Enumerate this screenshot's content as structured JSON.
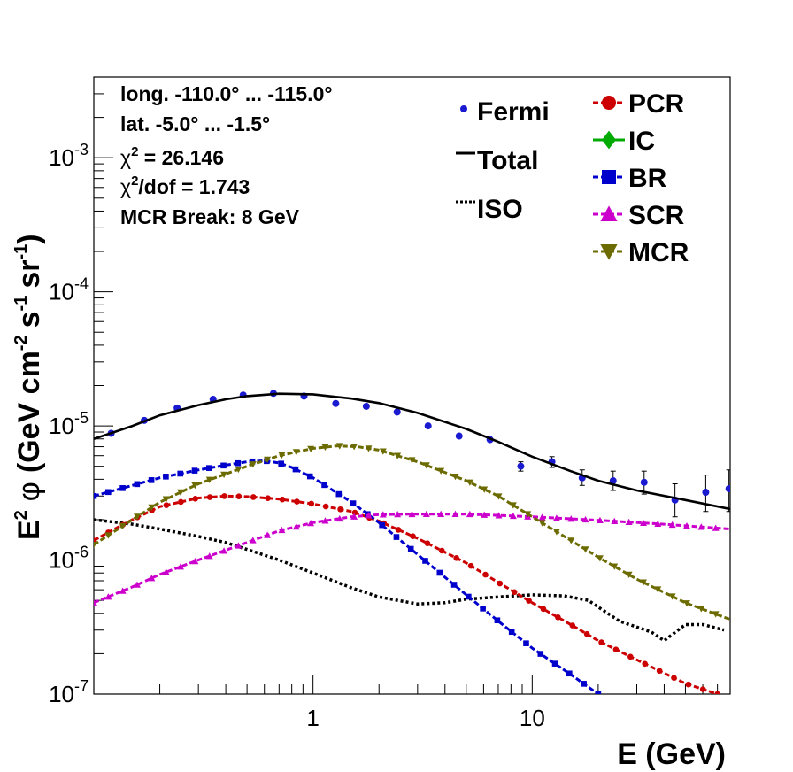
{
  "chart_data": {
    "type": "line",
    "title": "",
    "xlabel": "E (GeV)",
    "ylabel": {
      "main": "E",
      "sup1": "2",
      "phi": "φ",
      "unit_open": "(GeV cm",
      "sup2": "-2",
      "mid": "s",
      "sup3": "-1",
      "sr": "sr",
      "sup4": "-1",
      "close": ")"
    },
    "xscale": "log",
    "yscale": "log",
    "xlim": [
      0.1,
      80
    ],
    "ylim": [
      1e-07,
      0.004
    ],
    "x_ticks": [
      {
        "value": 1,
        "label": "1"
      },
      {
        "value": 10,
        "label": "10"
      }
    ],
    "y_ticks": [
      {
        "value": 1e-07,
        "base": "10",
        "exp": "-7"
      },
      {
        "value": 1e-06,
        "base": "10",
        "exp": "-6"
      },
      {
        "value": 1e-05,
        "base": "10",
        "exp": "-5"
      },
      {
        "value": 0.0001,
        "base": "10",
        "exp": "-4"
      },
      {
        "value": 0.001,
        "base": "10",
        "exp": "-3"
      }
    ],
    "grid": false,
    "annotations": [
      {
        "text": "long. -110.0° ... -115.0°"
      },
      {
        "text": "lat. -5.0° ... -1.5°"
      },
      {
        "pre": "χ",
        "sup": "2",
        "post": " = 26.146"
      },
      {
        "pre": "χ",
        "sup": "2",
        "post": "/dof = 1.743"
      },
      {
        "text": "MCR Break:  8 GeV"
      }
    ],
    "legend_placement": "top-right",
    "series": [
      {
        "name": "Fermi",
        "kind": "points",
        "color": "#1a1ad0",
        "marker": "circle",
        "x": [
          0.12,
          0.17,
          0.24,
          0.35,
          0.48,
          0.66,
          0.91,
          1.27,
          1.75,
          2.42,
          3.35,
          4.64,
          6.42,
          8.87,
          12.3,
          16.9,
          23.4,
          32.4,
          44.8,
          61.9,
          79
        ],
        "y": [
          8.8e-06,
          1.1e-05,
          1.36e-05,
          1.58e-05,
          1.7e-05,
          1.75e-05,
          1.67e-05,
          1.47e-05,
          1.4e-05,
          1.27e-05,
          1e-05,
          8.4e-06,
          7.9e-06,
          5e-06,
          5.4e-06,
          4.1e-06,
          3.9e-06,
          3.8e-06,
          2.8e-06,
          3.2e-06,
          3.4e-06
        ],
        "err_lo": [
          0,
          0,
          0,
          0,
          0,
          0,
          0,
          0,
          0,
          0,
          0,
          0,
          0,
          4e-07,
          5e-07,
          5e-07,
          6e-07,
          7e-07,
          7e-07,
          9e-07,
          1.1e-06
        ],
        "err_hi": [
          0,
          0,
          0,
          0,
          0,
          0,
          0,
          0,
          0,
          0,
          0,
          0,
          0,
          4e-07,
          5e-07,
          6e-07,
          7e-07,
          8e-07,
          9e-07,
          1.1e-06,
          1.3e-06
        ]
      },
      {
        "name": "Total",
        "kind": "line",
        "color": "#000000",
        "dash": "solid",
        "x": [
          0.1,
          0.15,
          0.2,
          0.3,
          0.4,
          0.5,
          0.7,
          1.0,
          1.5,
          2.0,
          3.0,
          5.0,
          7.0,
          10,
          15,
          20,
          30,
          50,
          80
        ],
        "y": [
          8e-06,
          1e-05,
          1.2e-05,
          1.43e-05,
          1.58e-05,
          1.67e-05,
          1.74e-05,
          1.72e-05,
          1.6e-05,
          1.48e-05,
          1.25e-05,
          9.5e-06,
          7.6e-06,
          5.9e-06,
          4.6e-06,
          3.9e-06,
          3.3e-06,
          2.8e-06,
          2.4e-06
        ]
      },
      {
        "name": "ISO",
        "kind": "line",
        "color": "#000000",
        "dash": "dotted",
        "x": [
          0.1,
          0.15,
          0.2,
          0.3,
          0.4,
          0.5,
          0.7,
          1.0,
          1.5,
          2.0,
          3.0,
          4.0,
          5.0,
          7.0,
          10,
          14,
          18,
          25,
          35,
          40,
          50,
          60,
          75
        ],
        "y": [
          2e-06,
          1.85e-06,
          1.7e-06,
          1.5e-06,
          1.35e-06,
          1.2e-06,
          1e-06,
          8e-07,
          6.2e-07,
          5.3e-07,
          4.7e-07,
          4.8e-07,
          5.1e-07,
          5.3e-07,
          5.5e-07,
          5.4e-07,
          5e-07,
          3.5e-07,
          2.9e-07,
          2.5e-07,
          3.3e-07,
          3.3e-07,
          3e-07
        ]
      },
      {
        "name": "PCR",
        "kind": "line",
        "color": "#cc0000",
        "dash": "dashed",
        "marker": "circle",
        "x": [
          0.1,
          0.12,
          0.15,
          0.2,
          0.3,
          0.4,
          0.5,
          0.7,
          1.0,
          1.5,
          2.0,
          3.0,
          5.0,
          7.0,
          10,
          15,
          20,
          30,
          50,
          70
        ],
        "y": [
          1.4e-06,
          1.65e-06,
          2e-06,
          2.5e-06,
          2.9e-06,
          3e-06,
          2.97e-06,
          2.85e-06,
          2.62e-06,
          2.3e-06,
          1.95e-06,
          1.45e-06,
          9.5e-07,
          6.8e-07,
          4.8e-07,
          3.3e-07,
          2.5e-07,
          1.8e-07,
          1.2e-07,
          1e-07
        ]
      },
      {
        "name": "IC",
        "kind": "line",
        "color": "#00aa00",
        "dash": "solid",
        "marker": "diamond",
        "x": [],
        "y": []
      },
      {
        "name": "BR",
        "kind": "line",
        "color": "#0000cc",
        "dash": "dashed",
        "marker": "square",
        "x": [
          0.1,
          0.15,
          0.2,
          0.3,
          0.4,
          0.5,
          0.6,
          0.7,
          0.8,
          1.0,
          1.5,
          2.0,
          3.0,
          5.0,
          7.0,
          10,
          15,
          20
        ],
        "y": [
          3e-06,
          3.6e-06,
          4.1e-06,
          4.7e-06,
          5.1e-06,
          5.4e-06,
          5.5e-06,
          5.3e-06,
          4.9e-06,
          4.1e-06,
          2.7e-06,
          1.9e-06,
          1.1e-06,
          5.5e-07,
          3.5e-07,
          2.2e-07,
          1.4e-07,
          1e-07
        ]
      },
      {
        "name": "SCR",
        "kind": "line",
        "color": "#cc00cc",
        "dash": "dashed",
        "marker": "triangle-up",
        "x": [
          0.1,
          0.15,
          0.2,
          0.3,
          0.5,
          0.7,
          1.0,
          1.5,
          2.0,
          3.0,
          5.0,
          10,
          20,
          40,
          80
        ],
        "y": [
          4.8e-07,
          6.3e-07,
          7.8e-07,
          1e-06,
          1.35e-06,
          1.65e-06,
          1.9e-06,
          2.1e-06,
          2.18e-06,
          2.2e-06,
          2.2e-06,
          2.1e-06,
          1.98e-06,
          1.85e-06,
          1.7e-06
        ]
      },
      {
        "name": "MCR",
        "kind": "line",
        "color": "#6b6b00",
        "dash": "dashed",
        "marker": "triangle-down",
        "x": [
          0.1,
          0.15,
          0.2,
          0.3,
          0.5,
          0.7,
          1.0,
          1.3,
          1.6,
          2.0,
          3.0,
          5.0,
          7.0,
          10,
          15,
          20,
          30,
          50,
          80
        ],
        "y": [
          1.3e-06,
          2e-06,
          2.7e-06,
          3.7e-06,
          5e-06,
          6e-06,
          6.8e-06,
          7.1e-06,
          7e-06,
          6.6e-06,
          5.4e-06,
          3.9e-06,
          3e-06,
          2.1e-06,
          1.4e-06,
          1.05e-06,
          7.2e-07,
          4.8e-07,
          3.6e-07
        ]
      }
    ]
  }
}
